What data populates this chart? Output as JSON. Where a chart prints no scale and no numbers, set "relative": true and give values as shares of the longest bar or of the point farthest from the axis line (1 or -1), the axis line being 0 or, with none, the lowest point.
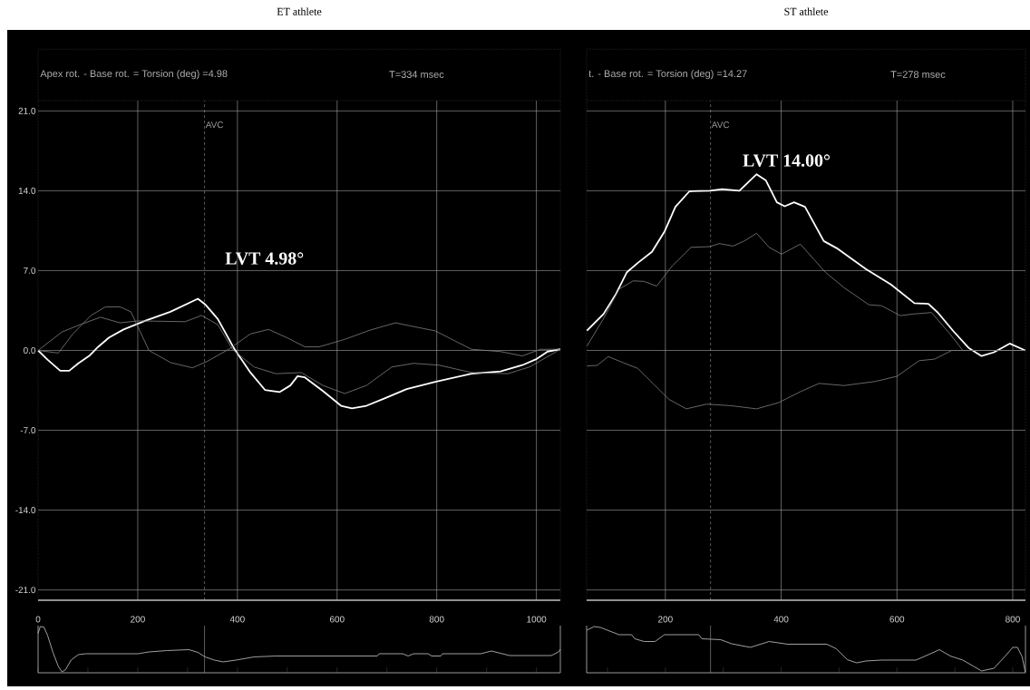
{
  "chart_data": [
    {
      "type": "line",
      "title": "ET athlete",
      "xlim": [
        0,
        1048
      ],
      "ylim": [
        -21.9,
        21.9
      ],
      "xticks": [
        200,
        400,
        600,
        800,
        1000
      ],
      "yticks": [
        {
          "value": -21,
          "label": "-21.0"
        },
        {
          "value": -14,
          "label": "-14.0"
        },
        {
          "value": -7,
          "label": "-7.0"
        },
        {
          "value": 0,
          "label": "0.0"
        },
        {
          "value": 7,
          "label": "7.0"
        },
        {
          "value": 14,
          "label": "14.0"
        },
        {
          "value": 21,
          "label": "21.0"
        }
      ],
      "tick_labels": "y",
      "grid": true,
      "line_style": "solid",
      "marker": "none",
      "ref_lines": [
        {
          "axis": "x",
          "value": 334,
          "label": "AVC",
          "color": "#9a9a9a",
          "line_style": "dashed"
        }
      ],
      "annotations": [
        "Apex rot. - Base rot. = Torsion (deg) =4.98",
        "T=334 msec",
        "LVT 4.98°"
      ],
      "series": [
        {
          "color": "#ffffff",
          "x": [
            0,
            18.9,
            44.4,
            62.5,
            80.7,
            102.5,
            120.7,
            142.5,
            171.6,
            214.5,
            265.5,
            320.7,
            335.3,
            360.7,
            393.5,
            426.2,
            455.3,
            484.4,
            506.2,
            520.7,
            535.3,
            571.6,
            608,
            629.8,
            658.9,
            695.3,
            739.6,
            797.1,
            869.8,
            928,
            971.6,
            1000.7,
            1022.5,
            1048
          ],
          "values": [
            0,
            -0.81,
            -1.78,
            -1.78,
            -1.13,
            -0.48,
            0.32,
            1.13,
            1.84,
            2.59,
            3.39,
            4.53,
            4.04,
            2.75,
            0.16,
            -1.94,
            -3.46,
            -3.65,
            -3.07,
            -2.26,
            -2.36,
            -3.56,
            -4.85,
            -5.08,
            -4.85,
            -4.2,
            -3.39,
            -2.75,
            -2.04,
            -1.84,
            -1.29,
            -0.74,
            -0.1,
            0.1
          ]
        },
        {
          "color": "#808080",
          "x": [
            0,
            40.7,
            69.8,
            106.2,
            135.3,
            164.4,
            186.2,
            222.5,
            266.2,
            309.8,
            338.9,
            382.5,
            426.2,
            462.5,
            498.9,
            535.3,
            564.4,
            615.3,
            666.2,
            717.1,
            797.1,
            869.8,
            928,
            971.6,
            1008,
            1048
          ],
          "values": [
            0,
            -0.23,
            1.45,
            3.07,
            3.82,
            3.82,
            3.39,
            0,
            -1.07,
            -1.52,
            -0.97,
            0.1,
            1.45,
            1.84,
            1.13,
            0.32,
            0.32,
            0.97,
            1.78,
            2.42,
            1.71,
            0.1,
            -0.1,
            -0.48,
            0.1,
            0.1
          ]
        },
        {
          "color": "#808080",
          "x": [
            0,
            48,
            84.4,
            125.1,
            164.4,
            200.7,
            295.3,
            328,
            360.7,
            389.8,
            433.5,
            477.1,
            528,
            571.6,
            615.3,
            658.9,
            709.8,
            753.5,
            804.4,
            869.8,
            942.5,
            986.2,
            1048
          ],
          "values": [
            0,
            1.62,
            2.26,
            2.91,
            2.42,
            2.59,
            2.52,
            3.07,
            2.26,
            0.1,
            -1.45,
            -2.04,
            -1.94,
            -3.07,
            -3.78,
            -3.07,
            -1.45,
            -1.13,
            -1.29,
            -1.94,
            -2.04,
            -1.45,
            0.1
          ]
        }
      ]
    },
    {
      "type": "line",
      "title": "ST athlete",
      "xlim": [
        64,
        822
      ],
      "ylim": [
        -21.9,
        21.9
      ],
      "xticks": [
        200,
        400,
        600,
        800
      ],
      "yticks": [
        -21,
        -14,
        -7,
        0,
        7,
        14,
        21
      ],
      "tick_labels": false,
      "grid": true,
      "line_style": "solid",
      "marker": "none",
      "ref_lines": [
        {
          "axis": "x",
          "value": 278,
          "label": "AVC",
          "color": "#9a9a9a",
          "line_style": "dashed"
        }
      ],
      "annotations": [
        "t. - Base rot. = Torsion (deg) =14.27",
        "T=278 msec",
        "LVT 14.00°"
      ],
      "series": [
        {
          "color": "#ffffff",
          "x": [
            64.5,
            93.1,
            114.7,
            133.6,
            152.5,
            176.8,
            198.4,
            217.3,
            241.5,
            276.6,
            298.2,
            327.9,
            357.6,
            373.7,
            392.6,
            406.1,
            422.3,
            441.2,
            473.6,
            497.9,
            546.4,
            589.6,
            630.1,
            654.4,
            670.6,
            697.5,
            724.5,
            746.1,
            767.7,
            794.7,
            821.6
          ],
          "values": [
            1.74,
            3.19,
            4.96,
            6.86,
            7.68,
            8.64,
            10.41,
            12.59,
            13.95,
            14.0,
            14.14,
            14.0,
            15.45,
            14.9,
            12.99,
            12.64,
            12.99,
            12.59,
            9.59,
            8.91,
            7.14,
            5.78,
            4.14,
            4.09,
            3.32,
            1.69,
            0.19,
            -0.49,
            -0.16,
            0.6,
            0
          ]
        },
        {
          "color": "#808080",
          "x": [
            64.5,
            93.1,
            120.1,
            144.4,
            163.3,
            184.9,
            211.9,
            244.2,
            276.6,
            292.8,
            317.1,
            336,
            357.6,
            379.2,
            400.7,
            433.1,
            476.3,
            508.7,
            551.8,
            573.4,
            605.8,
            627.4,
            659.8,
            692.1,
            713.7,
            821.6
          ],
          "values": [
            0.38,
            2.78,
            5.37,
            6.1,
            6.05,
            5.64,
            7.41,
            9.04,
            9.1,
            9.37,
            9.15,
            9.59,
            10.27,
            9.04,
            8.44,
            9.32,
            6.86,
            5.5,
            4.0,
            3.92,
            3.05,
            3.19,
            3.32,
            1.42,
            0,
            0
          ]
        },
        {
          "color": "#808080",
          "x": [
            64.5,
            82.3,
            101.2,
            125.5,
            152.5,
            179.5,
            206.5,
            236.1,
            271.2,
            314.4,
            357.6,
            395.4,
            433.1,
            465.5,
            508.7,
            562.6,
            600.4,
            638.2,
            665.1,
            694.9,
            821.6
          ],
          "values": [
            -1.36,
            -1.31,
            -0.54,
            -1.04,
            -1.58,
            -2.94,
            -4.3,
            -5.12,
            -4.71,
            -4.85,
            -5.12,
            -4.58,
            -3.62,
            -2.89,
            -3.08,
            -2.72,
            -2.26,
            -0.9,
            -0.76,
            0,
            0
          ]
        }
      ]
    },
    {
      "type": "line",
      "relative": true,
      "xlim": [
        0,
        1048
      ],
      "tick_labels": "x",
      "xticks": [
        0,
        {
          "value": 100,
          "label": null
        },
        200,
        {
          "value": 300,
          "label": null
        },
        400,
        {
          "value": 500,
          "label": null
        },
        600,
        {
          "value": 700,
          "label": null
        },
        800,
        {
          "value": 900,
          "label": null
        },
        1000
      ],
      "ref_lines": [
        {
          "axis": "x",
          "value": 334,
          "color": "#9a9a9a",
          "line_style": "solid"
        }
      ],
      "series": [
        {
          "color": "#c8c8c8",
          "x": [
            0,
            4.4,
            11.6,
            18.9,
            29.8,
            40.7,
            48,
            55.3,
            66.2,
            80.7,
            95.3,
            200.7,
            222.5,
            258.9,
            302.5,
            320.7,
            335.3,
            353.5,
            371.6,
            397.1,
            433.5,
            477.1,
            680.7,
            684.4,
            731.6,
            742.5,
            753.5,
            782.5,
            789.8,
            808,
            811.6,
            888,
            909.8,
            946.2,
            1029.8,
            1044.4,
            1048
          ],
          "values": [
            0.85,
            1,
            0.99,
            0.81,
            0.43,
            0.12,
            0,
            0.05,
            0.26,
            0.38,
            0.4,
            0.4,
            0.44,
            0.47,
            0.49,
            0.43,
            0.33,
            0.26,
            0.22,
            0.26,
            0.33,
            0.35,
            0.35,
            0.4,
            0.4,
            0.35,
            0.4,
            0.4,
            0.35,
            0.35,
            0.4,
            0.4,
            0.46,
            0.36,
            0.36,
            0.44,
            0.5
          ]
        }
      ]
    },
    {
      "type": "line",
      "relative": true,
      "xlim": [
        64,
        822
      ],
      "tick_labels": "x",
      "xticks": [
        {
          "value": 100,
          "label": null
        },
        200,
        {
          "value": 300,
          "label": null
        },
        400,
        {
          "value": 500,
          "label": null
        },
        600,
        {
          "value": 700,
          "label": null
        },
        800
      ],
      "ref_lines": [
        {
          "axis": "x",
          "value": 278,
          "color": "#9a9a9a",
          "line_style": "solid"
        }
      ],
      "series": [
        {
          "color": "#c8c8c8",
          "x": [
            64.5,
            77,
            87.7,
            120.1,
            141.7,
            147.1,
            163.3,
            182.2,
            198.4,
            257.7,
            263.1,
            295.5,
            314.4,
            346.8,
            379.2,
            411.5,
            479,
            495.2,
            514.1,
            530.2,
            546.4,
            573.4,
            632.8,
            654.4,
            673.2,
            692.1,
            713.7,
            746.1,
            767.7,
            789.3,
            800,
            808.2,
            816.3,
            821.6
          ],
          "values": [
            0.92,
            1,
            0.98,
            0.82,
            0.82,
            0.73,
            0.67,
            0.67,
            0.82,
            0.82,
            0.73,
            0.71,
            0.62,
            0.54,
            0.67,
            0.61,
            0.61,
            0.51,
            0.27,
            0.2,
            0.24,
            0.26,
            0.26,
            0.38,
            0.49,
            0.35,
            0.26,
            0.02,
            0.08,
            0.38,
            0.54,
            0.54,
            0.33,
            0
          ]
        }
      ]
    }
  ]
}
